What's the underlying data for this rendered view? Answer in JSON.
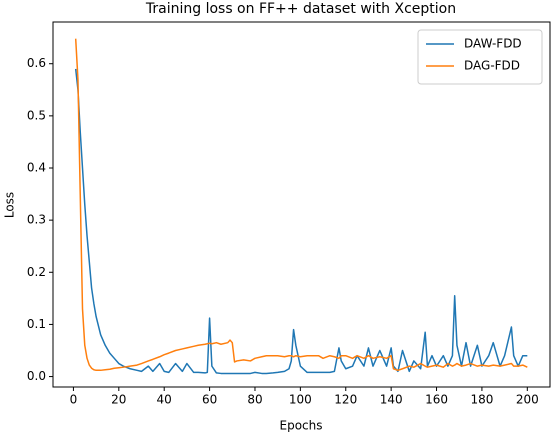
{
  "chart_data": {
    "type": "line",
    "title": "Training loss on FF++ dataset with Xception",
    "xlabel": "Epochs",
    "ylabel": "Loss",
    "x": [
      1,
      2,
      3,
      4,
      5,
      6,
      7,
      8,
      9,
      10,
      12,
      14,
      16,
      18,
      20,
      22,
      25,
      28,
      30,
      33,
      35,
      38,
      40,
      42,
      45,
      48,
      50,
      53,
      55,
      58,
      59,
      60,
      61,
      63,
      65,
      68,
      69,
      70,
      71,
      72,
      75,
      78,
      80,
      83,
      85,
      88,
      90,
      93,
      95,
      96,
      97,
      98,
      100,
      103,
      105,
      108,
      110,
      113,
      115,
      117,
      118,
      120,
      123,
      125,
      128,
      130,
      132,
      135,
      138,
      140,
      141,
      143,
      145,
      148,
      150,
      153,
      155,
      156,
      158,
      160,
      163,
      165,
      167,
      168,
      169,
      171,
      173,
      175,
      178,
      180,
      183,
      185,
      188,
      190,
      193,
      194,
      196,
      198,
      200
    ],
    "series": [
      {
        "name": "DAW-FDD",
        "color": "#1f77b4",
        "values": [
          0.59,
          0.55,
          0.47,
          0.4,
          0.33,
          0.27,
          0.22,
          0.17,
          0.14,
          0.115,
          0.08,
          0.06,
          0.045,
          0.035,
          0.025,
          0.02,
          0.015,
          0.012,
          0.01,
          0.02,
          0.01,
          0.025,
          0.01,
          0.008,
          0.025,
          0.01,
          0.025,
          0.008,
          0.008,
          0.007,
          0.008,
          0.112,
          0.02,
          0.007,
          0.006,
          0.006,
          0.006,
          0.006,
          0.006,
          0.006,
          0.006,
          0.006,
          0.008,
          0.006,
          0.006,
          0.007,
          0.008,
          0.01,
          0.015,
          0.03,
          0.09,
          0.06,
          0.02,
          0.008,
          0.008,
          0.008,
          0.008,
          0.008,
          0.01,
          0.055,
          0.03,
          0.015,
          0.02,
          0.04,
          0.02,
          0.055,
          0.02,
          0.05,
          0.02,
          0.055,
          0.02,
          0.01,
          0.05,
          0.01,
          0.03,
          0.015,
          0.085,
          0.02,
          0.04,
          0.02,
          0.04,
          0.02,
          0.04,
          0.155,
          0.06,
          0.02,
          0.065,
          0.02,
          0.06,
          0.02,
          0.04,
          0.065,
          0.02,
          0.04,
          0.095,
          0.04,
          0.02,
          0.04,
          0.04
        ]
      },
      {
        "name": "DAG-FDD",
        "color": "#ff7f0e",
        "values": [
          0.648,
          0.57,
          0.35,
          0.13,
          0.06,
          0.035,
          0.022,
          0.016,
          0.013,
          0.012,
          0.012,
          0.013,
          0.014,
          0.016,
          0.017,
          0.018,
          0.02,
          0.022,
          0.025,
          0.03,
          0.033,
          0.038,
          0.042,
          0.045,
          0.05,
          0.053,
          0.055,
          0.058,
          0.06,
          0.062,
          0.063,
          0.064,
          0.063,
          0.065,
          0.062,
          0.065,
          0.07,
          0.065,
          0.028,
          0.03,
          0.032,
          0.03,
          0.035,
          0.038,
          0.04,
          0.04,
          0.04,
          0.038,
          0.04,
          0.04,
          0.038,
          0.04,
          0.038,
          0.04,
          0.04,
          0.04,
          0.035,
          0.04,
          0.038,
          0.035,
          0.04,
          0.04,
          0.035,
          0.04,
          0.035,
          0.04,
          0.035,
          0.038,
          0.035,
          0.04,
          0.015,
          0.012,
          0.015,
          0.02,
          0.018,
          0.025,
          0.02,
          0.018,
          0.02,
          0.022,
          0.018,
          0.025,
          0.02,
          0.022,
          0.025,
          0.02,
          0.022,
          0.025,
          0.02,
          0.022,
          0.02,
          0.022,
          0.02,
          0.022,
          0.025,
          0.02,
          0.02,
          0.022,
          0.018
        ]
      }
    ],
    "xlim": [
      -9,
      210
    ],
    "xticks": [
      0,
      20,
      40,
      60,
      80,
      100,
      120,
      140,
      160,
      180,
      200
    ],
    "ylim": [
      -0.02,
      0.68
    ],
    "yticks": [
      {
        "value": 0,
        "label": "0.0"
      },
      0.1,
      0.2,
      0.3,
      0.4,
      0.5,
      0.6
    ],
    "legend": "upper right"
  }
}
